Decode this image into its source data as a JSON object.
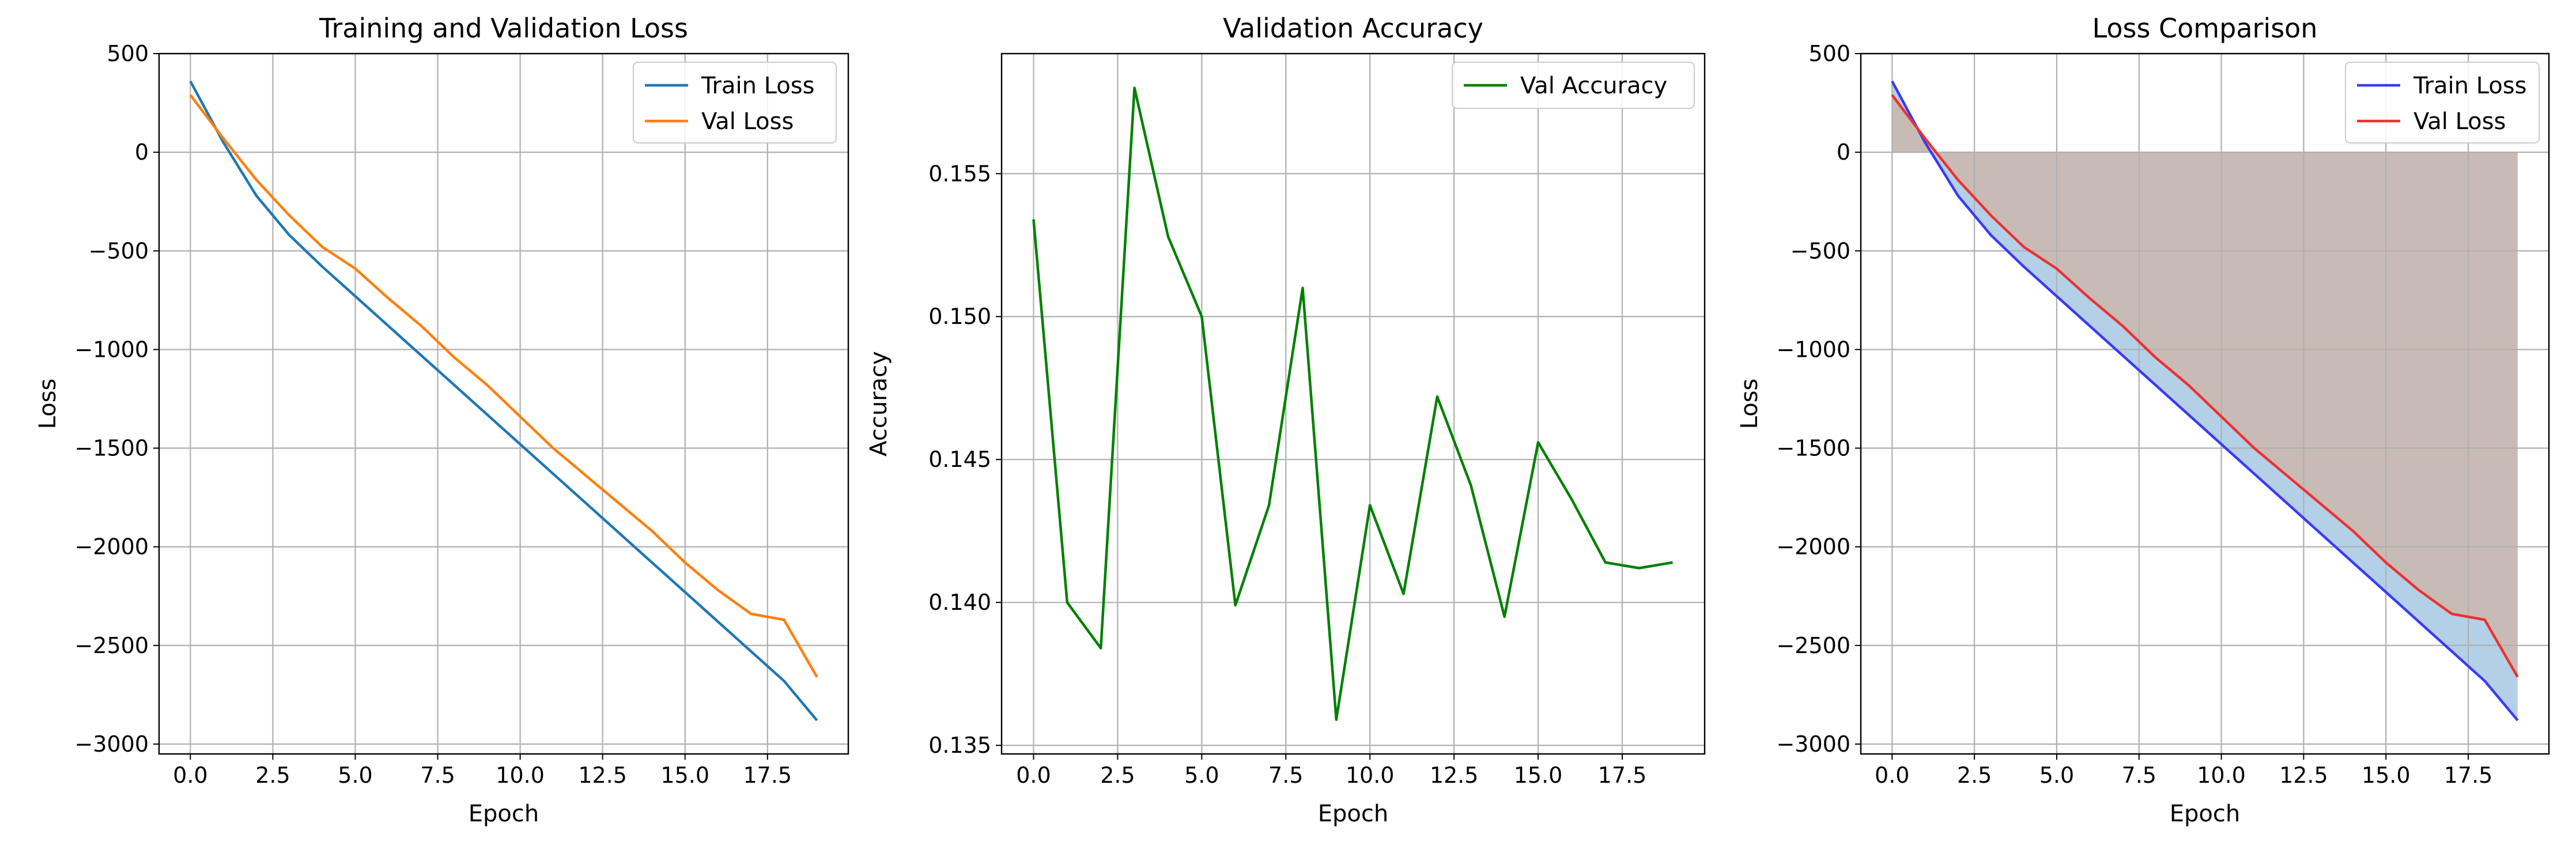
{
  "chart_data": [
    {
      "type": "line",
      "title": "Training and Validation Loss",
      "xlabel": "Epoch",
      "ylabel": "Loss",
      "xlim": [
        -0.95,
        19.95
      ],
      "ylim": [
        -3050,
        500
      ],
      "x_ticks": [
        "0.0",
        "2.5",
        "5.0",
        "7.5",
        "10.0",
        "12.5",
        "15.0",
        "17.5"
      ],
      "y_ticks": [
        "500",
        "0",
        "−500",
        "−1000",
        "−1500",
        "−2000",
        "−2500",
        "−3000"
      ],
      "grid": true,
      "legend_position": "top-right",
      "x": [
        0,
        1,
        2,
        3,
        4,
        5,
        6,
        7,
        8,
        9,
        10,
        11,
        12,
        13,
        14,
        15,
        16,
        17,
        18,
        19
      ],
      "series": [
        {
          "name": "Train Loss",
          "color": "#1f77b4",
          "values": [
            360,
            50,
            -220,
            -420,
            -580,
            -730,
            -880,
            -1030,
            -1180,
            -1330,
            -1480,
            -1630,
            -1780,
            -1930,
            -2080,
            -2230,
            -2380,
            -2530,
            -2680,
            -2880
          ]
        },
        {
          "name": "Val Loss",
          "color": "#ff7f0e",
          "values": [
            290,
            70,
            -140,
            -320,
            -480,
            -590,
            -740,
            -880,
            -1040,
            -1180,
            -1340,
            -1500,
            -1640,
            -1780,
            -1920,
            -2080,
            -2220,
            -2340,
            -2370,
            -2660
          ]
        }
      ]
    },
    {
      "type": "line",
      "title": "Validation Accuracy",
      "xlabel": "Epoch",
      "ylabel": "Accuracy",
      "xlim": [
        -0.95,
        19.95
      ],
      "ylim": [
        0.1347,
        0.1592
      ],
      "x_ticks": [
        "0.0",
        "2.5",
        "5.0",
        "7.5",
        "10.0",
        "12.5",
        "15.0",
        "17.5"
      ],
      "y_ticks": [
        "0.155",
        "0.150",
        "0.145",
        "0.140",
        "0.135"
      ],
      "grid": true,
      "legend_position": "top-right",
      "x": [
        0,
        1,
        2,
        3,
        4,
        5,
        6,
        7,
        8,
        9,
        10,
        11,
        12,
        13,
        14,
        15,
        16,
        17,
        18,
        19
      ],
      "series": [
        {
          "name": "Val Accuracy",
          "color": "#008000",
          "values": [
            0.1534,
            0.14,
            0.1384,
            0.158,
            0.1528,
            0.15,
            0.1399,
            0.1434,
            0.151,
            0.1359,
            0.1434,
            0.1403,
            0.1472,
            0.1441,
            0.1395,
            0.1456,
            0.1436,
            0.1414,
            0.1412,
            0.1414
          ]
        }
      ]
    },
    {
      "type": "area",
      "title": "Loss Comparison",
      "xlabel": "Epoch",
      "ylabel": "Loss",
      "xlim": [
        -0.95,
        19.95
      ],
      "ylim": [
        -3050,
        500
      ],
      "x_ticks": [
        "0.0",
        "2.5",
        "5.0",
        "7.5",
        "10.0",
        "12.5",
        "15.0",
        "17.5"
      ],
      "y_ticks": [
        "500",
        "0",
        "−500",
        "−1000",
        "−1500",
        "−2000",
        "−2500",
        "−3000"
      ],
      "grid": true,
      "legend_position": "top-right",
      "fills": [
        {
          "between": "Train Loss and 0",
          "color": "#a6c8e3"
        },
        {
          "between": "Val Loss and 0",
          "color": "#d9aa8c"
        }
      ],
      "x": [
        0,
        1,
        2,
        3,
        4,
        5,
        6,
        7,
        8,
        9,
        10,
        11,
        12,
        13,
        14,
        15,
        16,
        17,
        18,
        19
      ],
      "series": [
        {
          "name": "Train Loss",
          "color": "#3a3af2",
          "values": [
            360,
            50,
            -220,
            -420,
            -580,
            -730,
            -880,
            -1030,
            -1180,
            -1330,
            -1480,
            -1630,
            -1780,
            -1930,
            -2080,
            -2230,
            -2380,
            -2530,
            -2680,
            -2880
          ]
        },
        {
          "name": "Val Loss",
          "color": "#ee3030",
          "values": [
            290,
            70,
            -140,
            -320,
            -480,
            -590,
            -740,
            -880,
            -1040,
            -1180,
            -1340,
            -1500,
            -1640,
            -1780,
            -1920,
            -2080,
            -2220,
            -2340,
            -2370,
            -2660
          ]
        }
      ]
    }
  ]
}
